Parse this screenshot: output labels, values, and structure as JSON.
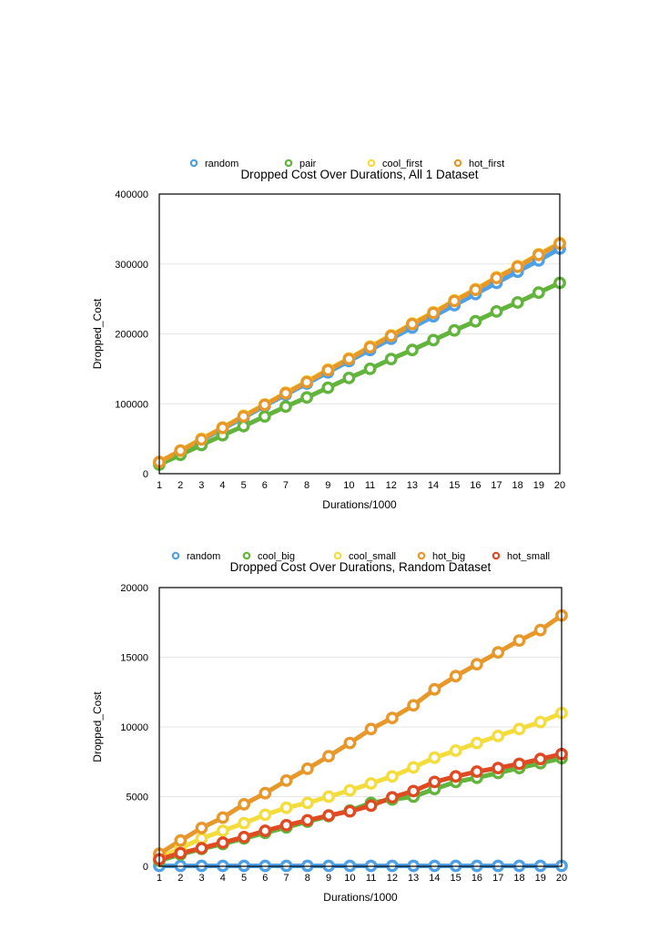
{
  "chart_data": [
    {
      "type": "line",
      "title": "Dropped Cost Over Durations, All 1 Dataset",
      "xlabel": "Durations/1000",
      "ylabel": "Dropped_Cost",
      "xlim": [
        1,
        20
      ],
      "ylim": [
        0,
        400000
      ],
      "yticks": [
        "0",
        "100000",
        "200000",
        "300000",
        "400000"
      ],
      "x": [
        1,
        2,
        3,
        4,
        5,
        6,
        7,
        8,
        9,
        10,
        11,
        12,
        13,
        14,
        15,
        16,
        17,
        18,
        19,
        20
      ],
      "grid": true,
      "legend": "top",
      "series": [
        {
          "name": "random",
          "color": "#4ea1e6",
          "values": [
            16000,
            32000,
            48000,
            64000,
            80000,
            97000,
            113000,
            129000,
            145000,
            161000,
            177000,
            193000,
            209000,
            225000,
            241000,
            257000,
            273000,
            289000,
            305000,
            322000
          ]
        },
        {
          "name": "pair",
          "color": "#62b43c",
          "values": [
            13000,
            27000,
            41000,
            55000,
            68000,
            82000,
            96000,
            109000,
            123000,
            137000,
            150000,
            164000,
            177000,
            191000,
            205000,
            218000,
            232000,
            245000,
            259000,
            273000
          ]
        },
        {
          "name": "cool_first",
          "color": "#f4dc3c",
          "values": [
            17000,
            33000,
            50000,
            66000,
            83000,
            99000,
            116000,
            132000,
            149000,
            165000,
            182000,
            198000,
            215000,
            231000,
            248000,
            264000,
            281000,
            297000,
            314000,
            330000
          ]
        },
        {
          "name": "hot_first",
          "color": "#e8982a",
          "values": [
            16500,
            33000,
            49000,
            65500,
            82000,
            98500,
            115000,
            131000,
            148000,
            164000,
            181000,
            197000,
            214000,
            230000,
            247000,
            263000,
            280000,
            296000,
            313000,
            329000
          ]
        }
      ]
    },
    {
      "type": "line",
      "title": "Dropped Cost Over Durations, Random Dataset",
      "xlabel": "Durations/1000",
      "ylabel": "Dropped_Cost",
      "xlim": [
        1,
        20
      ],
      "ylim": [
        0,
        20000
      ],
      "yticks": [
        "0",
        "5000",
        "10000",
        "15000",
        "20000"
      ],
      "x": [
        1,
        2,
        3,
        4,
        5,
        6,
        7,
        8,
        9,
        10,
        11,
        12,
        13,
        14,
        15,
        16,
        17,
        18,
        19,
        20
      ],
      "grid": true,
      "legend": "top",
      "series": [
        {
          "name": "random",
          "color": "#4ea1e6",
          "values": [
            30,
            30,
            30,
            30,
            30,
            30,
            30,
            30,
            30,
            30,
            30,
            30,
            30,
            30,
            30,
            30,
            30,
            30,
            30,
            30
          ]
        },
        {
          "name": "cool_big",
          "color": "#62b43c",
          "values": [
            400,
            850,
            1250,
            1600,
            2000,
            2400,
            2800,
            3200,
            3600,
            4000,
            4550,
            4800,
            5000,
            5550,
            6050,
            6350,
            6700,
            7050,
            7400,
            7750
          ]
        },
        {
          "name": "cool_small",
          "color": "#f4dc3c",
          "values": [
            600,
            1300,
            2000,
            2550,
            3100,
            3700,
            4200,
            4550,
            5000,
            5450,
            5950,
            6450,
            7100,
            7800,
            8300,
            8850,
            9350,
            9850,
            10350,
            11000
          ]
        },
        {
          "name": "hot_big",
          "color": "#e8982a",
          "values": [
            900,
            1850,
            2750,
            3500,
            4450,
            5250,
            6150,
            7000,
            7900,
            8850,
            9850,
            10650,
            11550,
            12700,
            13650,
            14500,
            15350,
            16200,
            16950,
            18000
          ]
        },
        {
          "name": "hot_small",
          "color": "#e04a23",
          "values": [
            500,
            950,
            1300,
            1700,
            2100,
            2550,
            2950,
            3300,
            3650,
            3950,
            4350,
            4950,
            5400,
            6050,
            6450,
            6800,
            7050,
            7350,
            7700,
            8050
          ]
        }
      ]
    }
  ]
}
